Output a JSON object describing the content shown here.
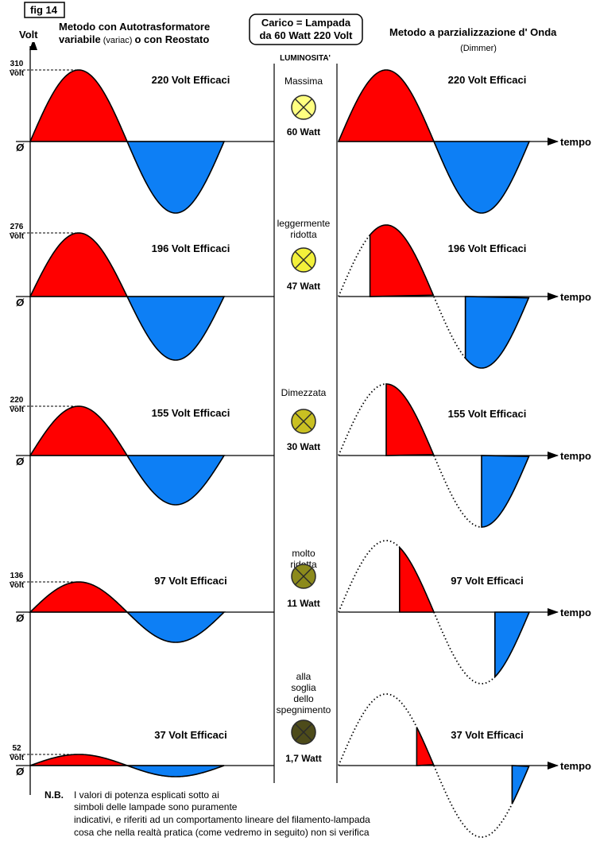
{
  "figure_tag": "fig 14",
  "axis_label": "Volt",
  "left_title": {
    "line1": "Metodo con Autotrasformatore",
    "line2_a": "variabile",
    "line2_b": "(variac)",
    "line2_c": "o con Reostato"
  },
  "center_box": {
    "line1": "Carico = Lampada",
    "line2": "da 60 Watt 220 Volt"
  },
  "center_header": "LUMINOSITA'",
  "right_title": {
    "line1": "Metodo a parzializzazione d' Onda",
    "line2": "(Dimmer)"
  },
  "time_label": "tempo",
  "zero_label": "Ø",
  "colors": {
    "positive": "#ff0000",
    "negative": "#0d7ff5",
    "lamp_outline": "#2a2a2a"
  },
  "rows": [
    {
      "peak_value": "310",
      "peak_unit": "Volt",
      "rms_left": "220 Volt Efficaci",
      "rms_right": "220 Volt Efficaci",
      "brightness": [
        "Massima"
      ],
      "power": "60 Watt",
      "lamp_color": "#ffff80",
      "cut_fraction": 0.0
    },
    {
      "peak_value": "276",
      "peak_unit": "Volt",
      "rms_left": "196 Volt Efficaci",
      "rms_right": "196 Volt Efficaci",
      "brightness": [
        "leggermente",
        "ridotta"
      ],
      "power": "47 Watt",
      "lamp_color": "#f2f03a",
      "cut_fraction": 0.33
    },
    {
      "peak_value": "220",
      "peak_unit": "Volt",
      "rms_left": "155 Volt Efficaci",
      "rms_right": "155 Volt Efficaci",
      "brightness": [
        "Dimezzata"
      ],
      "power": "30 Watt",
      "lamp_color": "#c9c022",
      "cut_fraction": 0.5
    },
    {
      "peak_value": "136",
      "peak_unit": "Volt",
      "rms_left": "97 Volt Efficaci",
      "rms_right": "97 Volt Efficaci",
      "brightness": [
        "molto",
        "ridotta"
      ],
      "power": "11 Watt",
      "lamp_color": "#8c8a1c",
      "cut_fraction": 0.64
    },
    {
      "peak_value": "52",
      "peak_unit": "Volt",
      "rms_left": "37 Volt Efficaci",
      "rms_right": "37 Volt Efficaci",
      "brightness": [
        "alla",
        "soglia",
        "dello",
        "spegnimento"
      ],
      "power": "1,7 Watt",
      "lamp_color": "#4d4b1a",
      "cut_fraction": 0.82
    }
  ],
  "note": {
    "label": "N.B.",
    "lines": [
      "I valori di potenza esplicati sotto ai",
      "simboli delle lampade sono puramente",
      "indicativi, e riferiti ad un comportamento lineare del filamento-lampada",
      "cosa che nella realtà pratica (come vedremo in seguito) non si verifica"
    ]
  }
}
